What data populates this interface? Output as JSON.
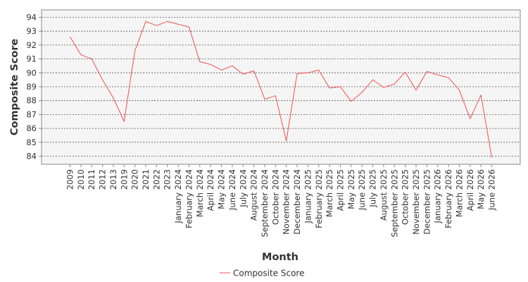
{
  "chart_data": {
    "type": "line",
    "title": "",
    "xlabel": "Month",
    "ylabel": "Composite Score",
    "categories": [
      "2009",
      "2010",
      "2011",
      "2012",
      "2013",
      "2019",
      "2020",
      "2021",
      "2022",
      "2023",
      "January 2024",
      "February 2024",
      "March 2024",
      "April 2024",
      "May 2024",
      "June 2024",
      "July 2024",
      "August 2024",
      "September 2024",
      "October 2024",
      "November 2024",
      "December 2024",
      "January 2025",
      "February 2025",
      "March 2025",
      "April 2025",
      "May 2025",
      "June 2025",
      "July 2025",
      "August 2025",
      "September 2025",
      "October 2025",
      "November 2025",
      "December 2025",
      "January 2026",
      "February 2026",
      "March 2026",
      "April 2026",
      "May 2026",
      "June 2026"
    ],
    "series": [
      {
        "name": "Composite Score",
        "color": "#f05050",
        "values": [
          92.6,
          91.3,
          91.0,
          89.5,
          88.2,
          86.5,
          91.6,
          93.7,
          93.4,
          93.7,
          93.5,
          93.3,
          90.8,
          90.6,
          90.2,
          90.5,
          89.9,
          90.15,
          88.1,
          88.35,
          85.1,
          89.95,
          90.0,
          90.2,
          88.9,
          89.0,
          87.95,
          88.6,
          89.5,
          88.95,
          89.2,
          90.05,
          88.75,
          90.1,
          89.85,
          89.65,
          88.75,
          86.7,
          88.4,
          83.9
        ]
      }
    ],
    "yticks": [
      84,
      85,
      86,
      87,
      88,
      89,
      90,
      91,
      92,
      93,
      94
    ],
    "ylim": [
      83.4,
      94.6
    ],
    "grid": true,
    "legend_position": "bottom-center"
  }
}
